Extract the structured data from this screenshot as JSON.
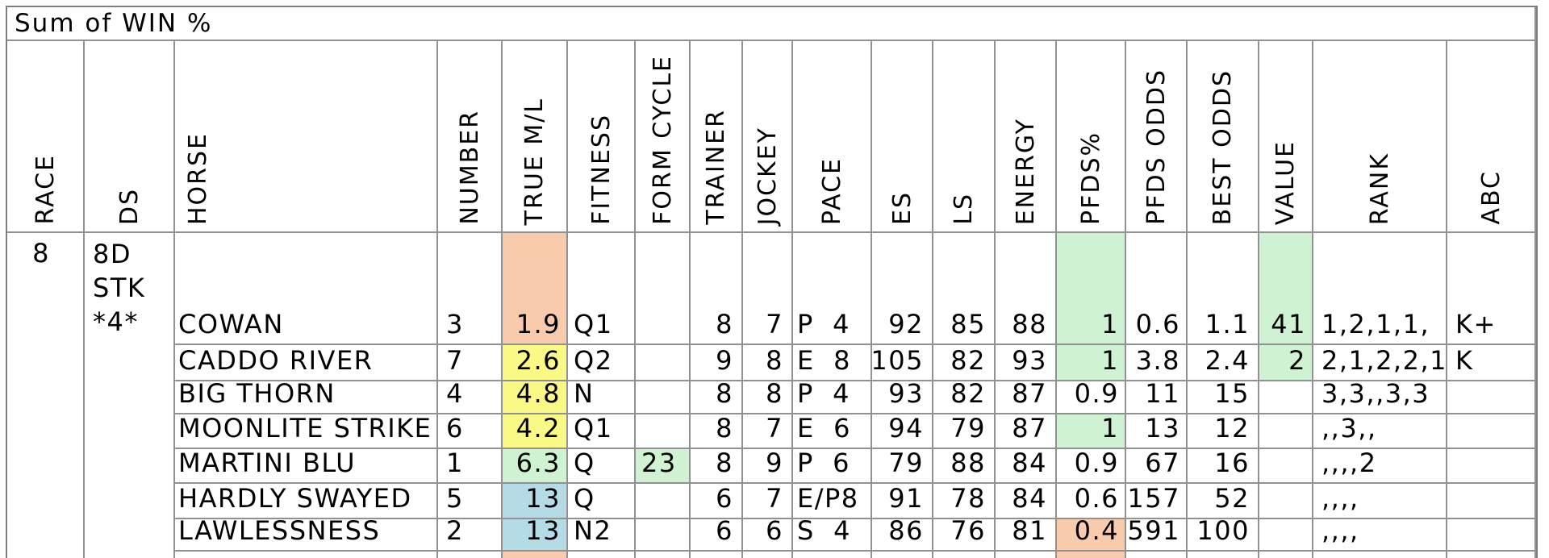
{
  "title": "Sum of WIN %",
  "columns": [
    {
      "label": "RACE"
    },
    {
      "label": "DS"
    },
    {
      "label": "HORSE"
    },
    {
      "label": "NUMBER"
    },
    {
      "label": "TRUE M/L"
    },
    {
      "label": "FITNESS"
    },
    {
      "label": "FORM CYCLE"
    },
    {
      "label": "TRAINER"
    },
    {
      "label": "JOCKEY"
    },
    {
      "label": "PACE"
    },
    {
      "label": "ES"
    },
    {
      "label": "LS"
    },
    {
      "label": "ENERGY"
    },
    {
      "label": "PFDS%"
    },
    {
      "label": "PFDS ODDS"
    },
    {
      "label": "BEST ODDS"
    },
    {
      "label": "VALUE"
    },
    {
      "label": "RANK"
    },
    {
      "label": "ABC"
    }
  ],
  "race_group": {
    "race": "8",
    "ds": "8D STK *4*"
  },
  "rows": [
    {
      "horse": "COWAN",
      "number": "3",
      "true_ml": "1.9",
      "fitness": "Q1",
      "form_cycle": "",
      "trainer": "8",
      "jockey": "7",
      "pace": "P  4",
      "es": "92",
      "ls": "85",
      "energy": "88",
      "pfds_pct": "1",
      "pfds_odds": "0.6",
      "best_odds": "1.1",
      "value": "41",
      "rank": "1,2,1,1,",
      "abc": "K+"
    },
    {
      "horse": "CADDO RIVER",
      "number": "7",
      "true_ml": "2.6",
      "fitness": "Q2",
      "form_cycle": "",
      "trainer": "9",
      "jockey": "8",
      "pace": "E  8",
      "es": "105",
      "ls": "82",
      "energy": "93",
      "pfds_pct": "1",
      "pfds_odds": "3.8",
      "best_odds": "2.4",
      "value": "2",
      "rank": "2,1,2,2,1",
      "abc": "K"
    },
    {
      "horse": "BIG THORN",
      "number": "4",
      "true_ml": "4.8",
      "fitness": "N",
      "form_cycle": "",
      "trainer": "8",
      "jockey": "8",
      "pace": "P  4",
      "es": "93",
      "ls": "82",
      "energy": "87",
      "pfds_pct": "0.9",
      "pfds_odds": "11",
      "best_odds": "15",
      "value": "",
      "rank": "3,3,,3,3",
      "abc": ""
    },
    {
      "horse": "MOONLITE STRIKE",
      "number": "6",
      "true_ml": "4.2",
      "fitness": "Q1",
      "form_cycle": "",
      "trainer": "8",
      "jockey": "7",
      "pace": "E  6",
      "es": "94",
      "ls": "79",
      "energy": "87",
      "pfds_pct": "1",
      "pfds_odds": "13",
      "best_odds": "12",
      "value": "",
      "rank": ",,3,,",
      "abc": ""
    },
    {
      "horse": "MARTINI BLU",
      "number": "1",
      "true_ml": "6.3",
      "fitness": "Q",
      "form_cycle": "23",
      "trainer": "8",
      "jockey": "9",
      "pace": "P  6",
      "es": "79",
      "ls": "88",
      "energy": "84",
      "pfds_pct": "0.9",
      "pfds_odds": "67",
      "best_odds": "16",
      "value": "",
      "rank": ",,,,2",
      "abc": ""
    },
    {
      "horse": "HARDLY SWAYED",
      "number": "5",
      "true_ml": "13",
      "fitness": "Q",
      "form_cycle": "",
      "trainer": "6",
      "jockey": "7",
      "pace": "E/P8",
      "es": "91",
      "ls": "78",
      "energy": "84",
      "pfds_pct": "0.6",
      "pfds_odds": "157",
      "best_odds": "52",
      "value": "",
      "rank": ",,,,",
      "abc": ""
    },
    {
      "horse": "LAWLESSNESS",
      "number": "2",
      "true_ml": "13",
      "fitness": "N2",
      "form_cycle": "",
      "trainer": "6",
      "jockey": "6",
      "pace": "S  4",
      "es": "86",
      "ls": "76",
      "energy": "81",
      "pfds_pct": "0.4",
      "pfds_odds": "591",
      "best_odds": "100",
      "value": "",
      "rank": ",,,,",
      "abc": ""
    }
  ],
  "colors": {
    "orange": "#F8CBAD",
    "yellow": "#FAF985",
    "green": "#CFF3D2",
    "blue": "#B5DBE7",
    "grid": "#919191"
  }
}
